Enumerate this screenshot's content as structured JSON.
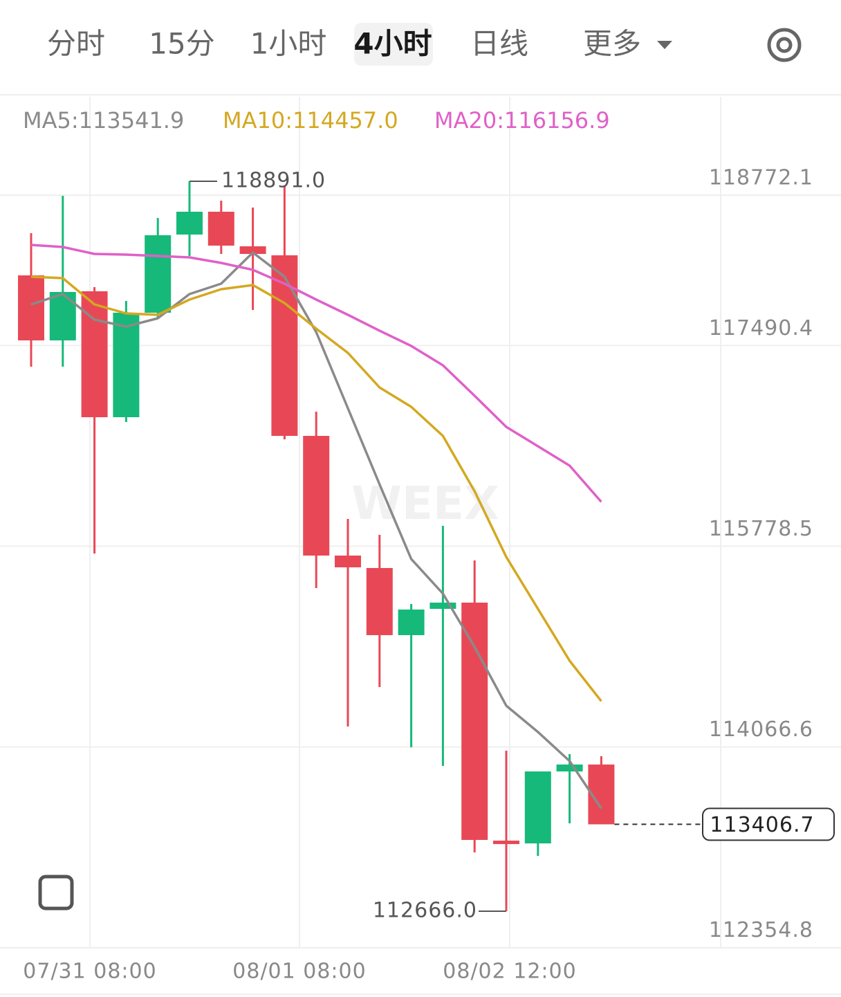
{
  "tabs": [
    "分时",
    "15分",
    "1小时",
    "4小时",
    "日线",
    "更多"
  ],
  "selected_tab": 3,
  "chart_data": {
    "type": "candlestick",
    "ma_header": [
      {
        "text": "MA5:113541.9",
        "color": "#8a8a8a"
      },
      {
        "text": "MA10:114457.0",
        "color": "#d4a820"
      },
      {
        "text": "MA20:116156.9",
        "color": "#e060c8"
      }
    ],
    "watermark": "WEEX",
    "up_color": "#16b979",
    "down_color": "#e84855",
    "open": [
      118088.5,
      117533.9,
      117952.8,
      116878.9,
      117769.9,
      118436.6,
      118631.3,
      118336.3,
      118259.6,
      116719.6,
      115698.8,
      115592.6,
      115020.2,
      115244.5,
      115297.6,
      113267.8,
      113244.2,
      113857.8,
      113916.8
    ],
    "high": [
      118448.4,
      118767.1,
      117988.2,
      117870.2,
      118578.2,
      118891.0,
      118725.8,
      118666.7,
      118855.6,
      116926.1,
      116011.5,
      115875.8,
      115285.8,
      115952.5,
      115657.5,
      114034.9,
      113857.8,
      114005.4,
      113987.7
    ],
    "low": [
      117309.6,
      117309.6,
      115716.5,
      116837.6,
      117722.7,
      118253.7,
      118271.4,
      117793.5,
      116690.1,
      115421.5,
      114241.4,
      114577.7,
      114064.4,
      113905.0,
      113167.5,
      112666.0,
      113138.0,
      113415.3,
      113406.7
    ],
    "close": [
      117533.9,
      117946.9,
      116878.9,
      117769.9,
      118430.7,
      118631.3,
      118342.2,
      118271.4,
      116719.6,
      115698.8,
      115598.5,
      115020.2,
      115238.6,
      115297.6,
      113273.7,
      113238.3,
      113857.8,
      113916.8,
      113406.7
    ],
    "series": [
      {
        "name": "MA5",
        "color": "#8a8a8a",
        "values": [
          117840.7,
          117929.2,
          117710.9,
          117651.9,
          117722.7,
          117929.2,
          118017.7,
          118283.2,
          118076.7,
          117604.7,
          116955.6,
          116306.5,
          115669.3,
          115374.3,
          114919.9,
          114418.4,
          114194.2,
          113946.3,
          113541.9
        ]
      },
      {
        "name": "MA10",
        "color": "#d4a820",
        "values": [
          118076.7,
          118064.9,
          117840.7,
          117764.0,
          117752.2,
          117882.0,
          117970.5,
          118005.9,
          117852.5,
          117634.2,
          117427.6,
          117132.6,
          116967.4,
          116719.6,
          116247.5,
          115687.0,
          115244.5,
          114801.9,
          114457.0
        ]
      },
      {
        "name": "MA20",
        "color": "#e060c8",
        "values": [
          118348.1,
          118330.4,
          118271.4,
          118265.5,
          118253.7,
          118241.9,
          118194.7,
          118135.7,
          118017.7,
          117882.0,
          117752.2,
          117616.5,
          117486.6,
          117321.4,
          117061.8,
          116796.3,
          116631.1,
          116465.9,
          116156.9
        ]
      }
    ],
    "ylim": [
      112354.8,
      119610.9
    ],
    "yticks": [
      112354.8,
      114066.6,
      115778.5,
      117490.4,
      118772.1
    ],
    "xtick_labels": [
      "07/31 08:00",
      "08/01 08:00",
      "08/02 12:00"
    ],
    "high_marker": {
      "index": 5,
      "value": 118891.0,
      "label": "118891.0"
    },
    "low_marker": {
      "index": 15,
      "value": 112666.0,
      "label": "112666.0"
    },
    "last_price": 113406.7,
    "grid": true
  }
}
